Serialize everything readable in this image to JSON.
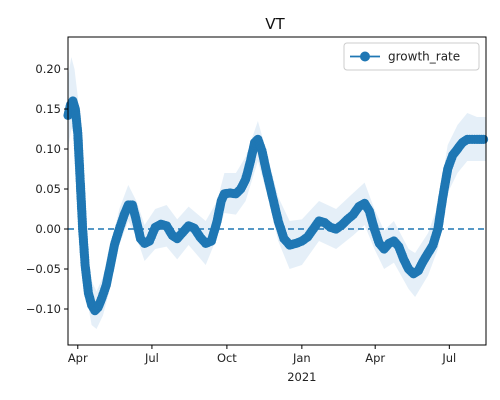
{
  "chart_data": {
    "type": "line",
    "title": "VT",
    "legend": {
      "position": "top-right",
      "entries": [
        "growth_rate"
      ]
    },
    "colors": {
      "series": "#1f77b4",
      "band": "#dce9f5",
      "zero_line": "#1f77b4"
    },
    "xlim": [
      "2020-03-20",
      "2021-08-15"
    ],
    "ylim": [
      -0.145,
      0.24
    ],
    "y_ticks": [
      -0.1,
      -0.05,
      0.0,
      0.05,
      0.1,
      0.15,
      0.2
    ],
    "y_tick_labels": [
      "−0.10",
      "−0.05",
      "0.00",
      "0.05",
      "0.10",
      "0.15",
      "0.20"
    ],
    "x_ticks": [
      {
        "date": "2020-04-01",
        "label": "Apr",
        "sub": ""
      },
      {
        "date": "2020-07-01",
        "label": "Jul",
        "sub": ""
      },
      {
        "date": "2020-10-01",
        "label": "Oct",
        "sub": ""
      },
      {
        "date": "2021-01-01",
        "label": "Jan",
        "sub": "2021"
      },
      {
        "date": "2021-04-01",
        "label": "Apr",
        "sub": ""
      },
      {
        "date": "2021-07-01",
        "label": "Jul",
        "sub": ""
      }
    ],
    "reference_line": {
      "y": 0,
      "style": "dashed"
    },
    "series": [
      {
        "name": "growth_rate",
        "marker": "circle",
        "points": [
          [
            "2020-03-20",
            0.142
          ],
          [
            "2020-03-23",
            0.155
          ],
          [
            "2020-03-26",
            0.16
          ],
          [
            "2020-03-29",
            0.15
          ],
          [
            "2020-04-01",
            0.12
          ],
          [
            "2020-04-04",
            0.06
          ],
          [
            "2020-04-07",
            0.0
          ],
          [
            "2020-04-10",
            -0.045
          ],
          [
            "2020-04-14",
            -0.08
          ],
          [
            "2020-04-18",
            -0.095
          ],
          [
            "2020-04-22",
            -0.102
          ],
          [
            "2020-04-26",
            -0.098
          ],
          [
            "2020-05-01",
            -0.085
          ],
          [
            "2020-05-06",
            -0.07
          ],
          [
            "2020-05-11",
            -0.045
          ],
          [
            "2020-05-16",
            -0.02
          ],
          [
            "2020-05-22",
            0.0
          ],
          [
            "2020-05-28",
            0.018
          ],
          [
            "2020-06-02",
            0.03
          ],
          [
            "2020-06-07",
            0.03
          ],
          [
            "2020-06-12",
            0.01
          ],
          [
            "2020-06-17",
            -0.012
          ],
          [
            "2020-06-22",
            -0.018
          ],
          [
            "2020-06-28",
            -0.015
          ],
          [
            "2020-07-05",
            0.002
          ],
          [
            "2020-07-12",
            0.006
          ],
          [
            "2020-07-19",
            0.004
          ],
          [
            "2020-07-26",
            -0.008
          ],
          [
            "2020-08-01",
            -0.012
          ],
          [
            "2020-08-08",
            -0.004
          ],
          [
            "2020-08-15",
            0.004
          ],
          [
            "2020-08-22",
            0.001
          ],
          [
            "2020-08-29",
            -0.01
          ],
          [
            "2020-09-05",
            -0.018
          ],
          [
            "2020-09-12",
            -0.015
          ],
          [
            "2020-09-19",
            0.01
          ],
          [
            "2020-09-24",
            0.035
          ],
          [
            "2020-09-28",
            0.044
          ],
          [
            "2020-10-05",
            0.045
          ],
          [
            "2020-10-12",
            0.044
          ],
          [
            "2020-10-18",
            0.05
          ],
          [
            "2020-10-24",
            0.062
          ],
          [
            "2020-10-30",
            0.085
          ],
          [
            "2020-11-04",
            0.108
          ],
          [
            "2020-11-08",
            0.112
          ],
          [
            "2020-11-13",
            0.098
          ],
          [
            "2020-11-19",
            0.07
          ],
          [
            "2020-11-26",
            0.04
          ],
          [
            "2020-12-03",
            0.01
          ],
          [
            "2020-12-10",
            -0.012
          ],
          [
            "2020-12-17",
            -0.02
          ],
          [
            "2020-12-25",
            -0.018
          ],
          [
            "2021-01-01",
            -0.015
          ],
          [
            "2021-01-08",
            -0.01
          ],
          [
            "2021-01-15",
            0.0
          ],
          [
            "2021-01-22",
            0.01
          ],
          [
            "2021-01-29",
            0.008
          ],
          [
            "2021-02-05",
            0.002
          ],
          [
            "2021-02-12",
            0.0
          ],
          [
            "2021-02-19",
            0.005
          ],
          [
            "2021-02-26",
            0.012
          ],
          [
            "2021-03-05",
            0.018
          ],
          [
            "2021-03-12",
            0.028
          ],
          [
            "2021-03-19",
            0.032
          ],
          [
            "2021-03-25",
            0.022
          ],
          [
            "2021-03-31",
            0.0
          ],
          [
            "2021-04-06",
            -0.018
          ],
          [
            "2021-04-12",
            -0.025
          ],
          [
            "2021-04-18",
            -0.018
          ],
          [
            "2021-04-24",
            -0.015
          ],
          [
            "2021-04-30",
            -0.022
          ],
          [
            "2021-05-06",
            -0.038
          ],
          [
            "2021-05-12",
            -0.05
          ],
          [
            "2021-05-18",
            -0.056
          ],
          [
            "2021-05-24",
            -0.052
          ],
          [
            "2021-05-30",
            -0.04
          ],
          [
            "2021-06-05",
            -0.03
          ],
          [
            "2021-06-11",
            -0.02
          ],
          [
            "2021-06-17",
            0.0
          ],
          [
            "2021-06-23",
            0.04
          ],
          [
            "2021-06-29",
            0.075
          ],
          [
            "2021-07-05",
            0.092
          ],
          [
            "2021-07-11",
            0.1
          ],
          [
            "2021-07-17",
            0.108
          ],
          [
            "2021-07-23",
            0.112
          ],
          [
            "2021-07-29",
            0.112
          ],
          [
            "2021-08-04",
            0.112
          ],
          [
            "2021-08-12",
            0.112
          ]
        ]
      }
    ],
    "band": {
      "name": "uncertainty",
      "points": [
        [
          "2020-03-20",
          0.1,
          0.19
        ],
        [
          "2020-03-24",
          0.125,
          0.215
        ],
        [
          "2020-03-28",
          0.12,
          0.2
        ],
        [
          "2020-04-01",
          0.085,
          0.165
        ],
        [
          "2020-04-05",
          0.01,
          0.1
        ],
        [
          "2020-04-10",
          -0.075,
          -0.01
        ],
        [
          "2020-04-18",
          -0.12,
          -0.065
        ],
        [
          "2020-04-24",
          -0.125,
          -0.078
        ],
        [
          "2020-05-02",
          -0.108,
          -0.06
        ],
        [
          "2020-05-12",
          -0.068,
          -0.02
        ],
        [
          "2020-05-22",
          -0.02,
          0.025
        ],
        [
          "2020-06-02",
          0.01,
          0.055
        ],
        [
          "2020-06-12",
          -0.01,
          0.035
        ],
        [
          "2020-06-22",
          -0.04,
          0.005
        ],
        [
          "2020-07-05",
          -0.025,
          0.025
        ],
        [
          "2020-07-19",
          -0.022,
          0.03
        ],
        [
          "2020-08-01",
          -0.038,
          0.012
        ],
        [
          "2020-08-15",
          -0.02,
          0.028
        ],
        [
          "2020-09-05",
          -0.045,
          0.01
        ],
        [
          "2020-09-19",
          -0.01,
          0.035
        ],
        [
          "2020-09-28",
          0.02,
          0.07
        ],
        [
          "2020-10-12",
          0.018,
          0.07
        ],
        [
          "2020-10-24",
          0.035,
          0.09
        ],
        [
          "2020-11-08",
          0.085,
          0.135
        ],
        [
          "2020-11-19",
          0.045,
          0.095
        ],
        [
          "2020-12-03",
          -0.015,
          0.04
        ],
        [
          "2020-12-17",
          -0.05,
          0.01
        ],
        [
          "2021-01-01",
          -0.045,
          0.012
        ],
        [
          "2021-01-22",
          -0.015,
          0.035
        ],
        [
          "2021-02-12",
          -0.025,
          0.025
        ],
        [
          "2021-03-05",
          -0.008,
          0.045
        ],
        [
          "2021-03-19",
          0.005,
          0.058
        ],
        [
          "2021-03-31",
          -0.025,
          0.025
        ],
        [
          "2021-04-12",
          -0.05,
          -0.002
        ],
        [
          "2021-04-24",
          -0.042,
          0.01
        ],
        [
          "2021-05-12",
          -0.075,
          -0.025
        ],
        [
          "2021-05-20",
          -0.085,
          -0.03
        ],
        [
          "2021-06-05",
          -0.058,
          -0.005
        ],
        [
          "2021-06-17",
          -0.025,
          0.03
        ],
        [
          "2021-06-29",
          0.045,
          0.105
        ],
        [
          "2021-07-11",
          0.07,
          0.13
        ],
        [
          "2021-07-23",
          0.085,
          0.145
        ],
        [
          "2021-08-04",
          0.085,
          0.14
        ],
        [
          "2021-08-15",
          0.085,
          0.14
        ]
      ]
    }
  }
}
